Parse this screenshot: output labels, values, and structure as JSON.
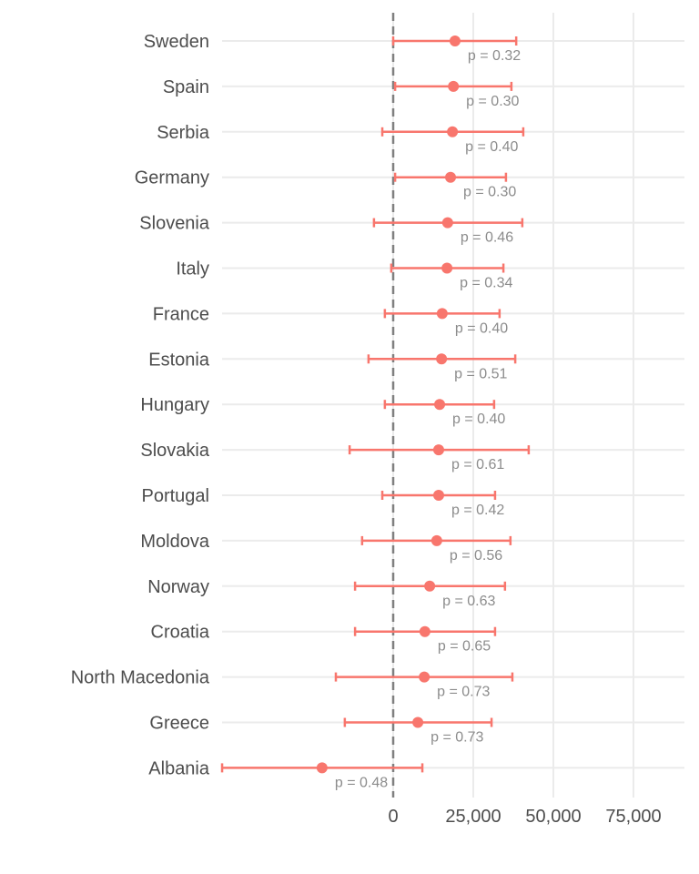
{
  "chart_data": {
    "type": "scatter",
    "subtype": "forest-plot",
    "title": "",
    "xlabel": "",
    "ylabel": "",
    "xlim": [
      -53400,
      91000
    ],
    "x_ticks": [
      0,
      25000,
      50000,
      75000
    ],
    "x_tick_labels": [
      "0",
      "25,000",
      "50,000",
      "75,000"
    ],
    "reference_line": 0,
    "grid": true,
    "legend": "none",
    "colors": {
      "point": "#F8766D",
      "reference": "#808080",
      "grid": "#EBEBEB",
      "label": "#4D4D4D",
      "pvalue": "#8C8C8C"
    },
    "rows": [
      {
        "country": "Sweden",
        "estimate": 19300,
        "lower": 0,
        "upper": 38400,
        "p_label": "p = 0.32"
      },
      {
        "country": "Spain",
        "estimate": 18800,
        "lower": 600,
        "upper": 36900,
        "p_label": "p = 0.30"
      },
      {
        "country": "Serbia",
        "estimate": 18500,
        "lower": -3400,
        "upper": 40600,
        "p_label": "p = 0.40"
      },
      {
        "country": "Germany",
        "estimate": 17900,
        "lower": 600,
        "upper": 35200,
        "p_label": "p = 0.30"
      },
      {
        "country": "Slovenia",
        "estimate": 17000,
        "lower": -6000,
        "upper": 40300,
        "p_label": "p = 0.46"
      },
      {
        "country": "Italy",
        "estimate": 16800,
        "lower": -600,
        "upper": 34400,
        "p_label": "p = 0.34"
      },
      {
        "country": "France",
        "estimate": 15300,
        "lower": -2600,
        "upper": 33200,
        "p_label": "p = 0.40"
      },
      {
        "country": "Estonia",
        "estimate": 15100,
        "lower": -7700,
        "upper": 38100,
        "p_label": "p = 0.51"
      },
      {
        "country": "Hungary",
        "estimate": 14500,
        "lower": -2600,
        "upper": 31500,
        "p_label": "p = 0.40"
      },
      {
        "country": "Slovakia",
        "estimate": 14200,
        "lower": -13600,
        "upper": 42300,
        "p_label": "p = 0.61"
      },
      {
        "country": "Portugal",
        "estimate": 14200,
        "lower": -3400,
        "upper": 31800,
        "p_label": "p = 0.42"
      },
      {
        "country": "Moldova",
        "estimate": 13600,
        "lower": -9700,
        "upper": 36600,
        "p_label": "p = 0.56"
      },
      {
        "country": "Norway",
        "estimate": 11400,
        "lower": -11900,
        "upper": 34900,
        "p_label": "p = 0.63"
      },
      {
        "country": "Croatia",
        "estimate": 9900,
        "lower": -11900,
        "upper": 31800,
        "p_label": "p = 0.65"
      },
      {
        "country": "North Macedonia",
        "estimate": 9700,
        "lower": -17900,
        "upper": 37200,
        "p_label": "p = 0.73"
      },
      {
        "country": "Greece",
        "estimate": 7700,
        "lower": -15100,
        "upper": 30700,
        "p_label": "p = 0.73"
      },
      {
        "country": "Albania",
        "estimate": -22200,
        "lower": -53400,
        "upper": 9100,
        "p_label": "p = 0.48"
      }
    ]
  }
}
